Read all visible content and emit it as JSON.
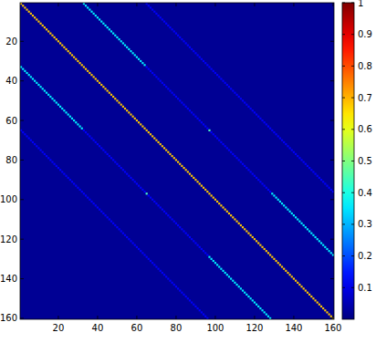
{
  "chart_data": {
    "type": "heatmap",
    "xlim": [
      0.5,
      160.5
    ],
    "ylim": [
      160.5,
      0.5
    ],
    "xticks": [
      20,
      40,
      60,
      80,
      100,
      120,
      140,
      160
    ],
    "yticks": [
      20,
      40,
      60,
      80,
      100,
      120,
      140,
      160
    ],
    "background_value": 0.02,
    "bands": [
      {
        "row_start": 1,
        "col_start": 65,
        "length": 96,
        "value": 0.12
      },
      {
        "row_start": 65,
        "col_start": 1,
        "length": 96,
        "value": 0.12
      },
      {
        "row_start": 33,
        "col_start": 65,
        "length": 64,
        "value": 0.12
      },
      {
        "row_start": 65,
        "col_start": 33,
        "length": 64,
        "value": 0.12
      },
      {
        "row_start": 1,
        "col_start": 33,
        "length": 32,
        "value": 0.36
      },
      {
        "row_start": 33,
        "col_start": 1,
        "length": 32,
        "value": 0.36
      },
      {
        "row_start": 97,
        "col_start": 129,
        "length": 32,
        "value": 0.36
      },
      {
        "row_start": 129,
        "col_start": 97,
        "length": 32,
        "value": 0.36
      },
      {
        "row_start": 65,
        "col_start": 97,
        "length": 1,
        "value": 0.45
      },
      {
        "row_start": 97,
        "col_start": 65,
        "length": 1,
        "value": 0.45
      },
      {
        "row_start": 1,
        "col_start": 1,
        "length": 160,
        "value": 0.68
      }
    ],
    "colorbar_range": [
      0,
      1
    ],
    "colorbar_ticks": [
      0.1,
      0.2,
      0.3,
      0.4,
      0.5,
      0.6,
      0.7,
      0.8,
      0.9,
      1
    ]
  }
}
